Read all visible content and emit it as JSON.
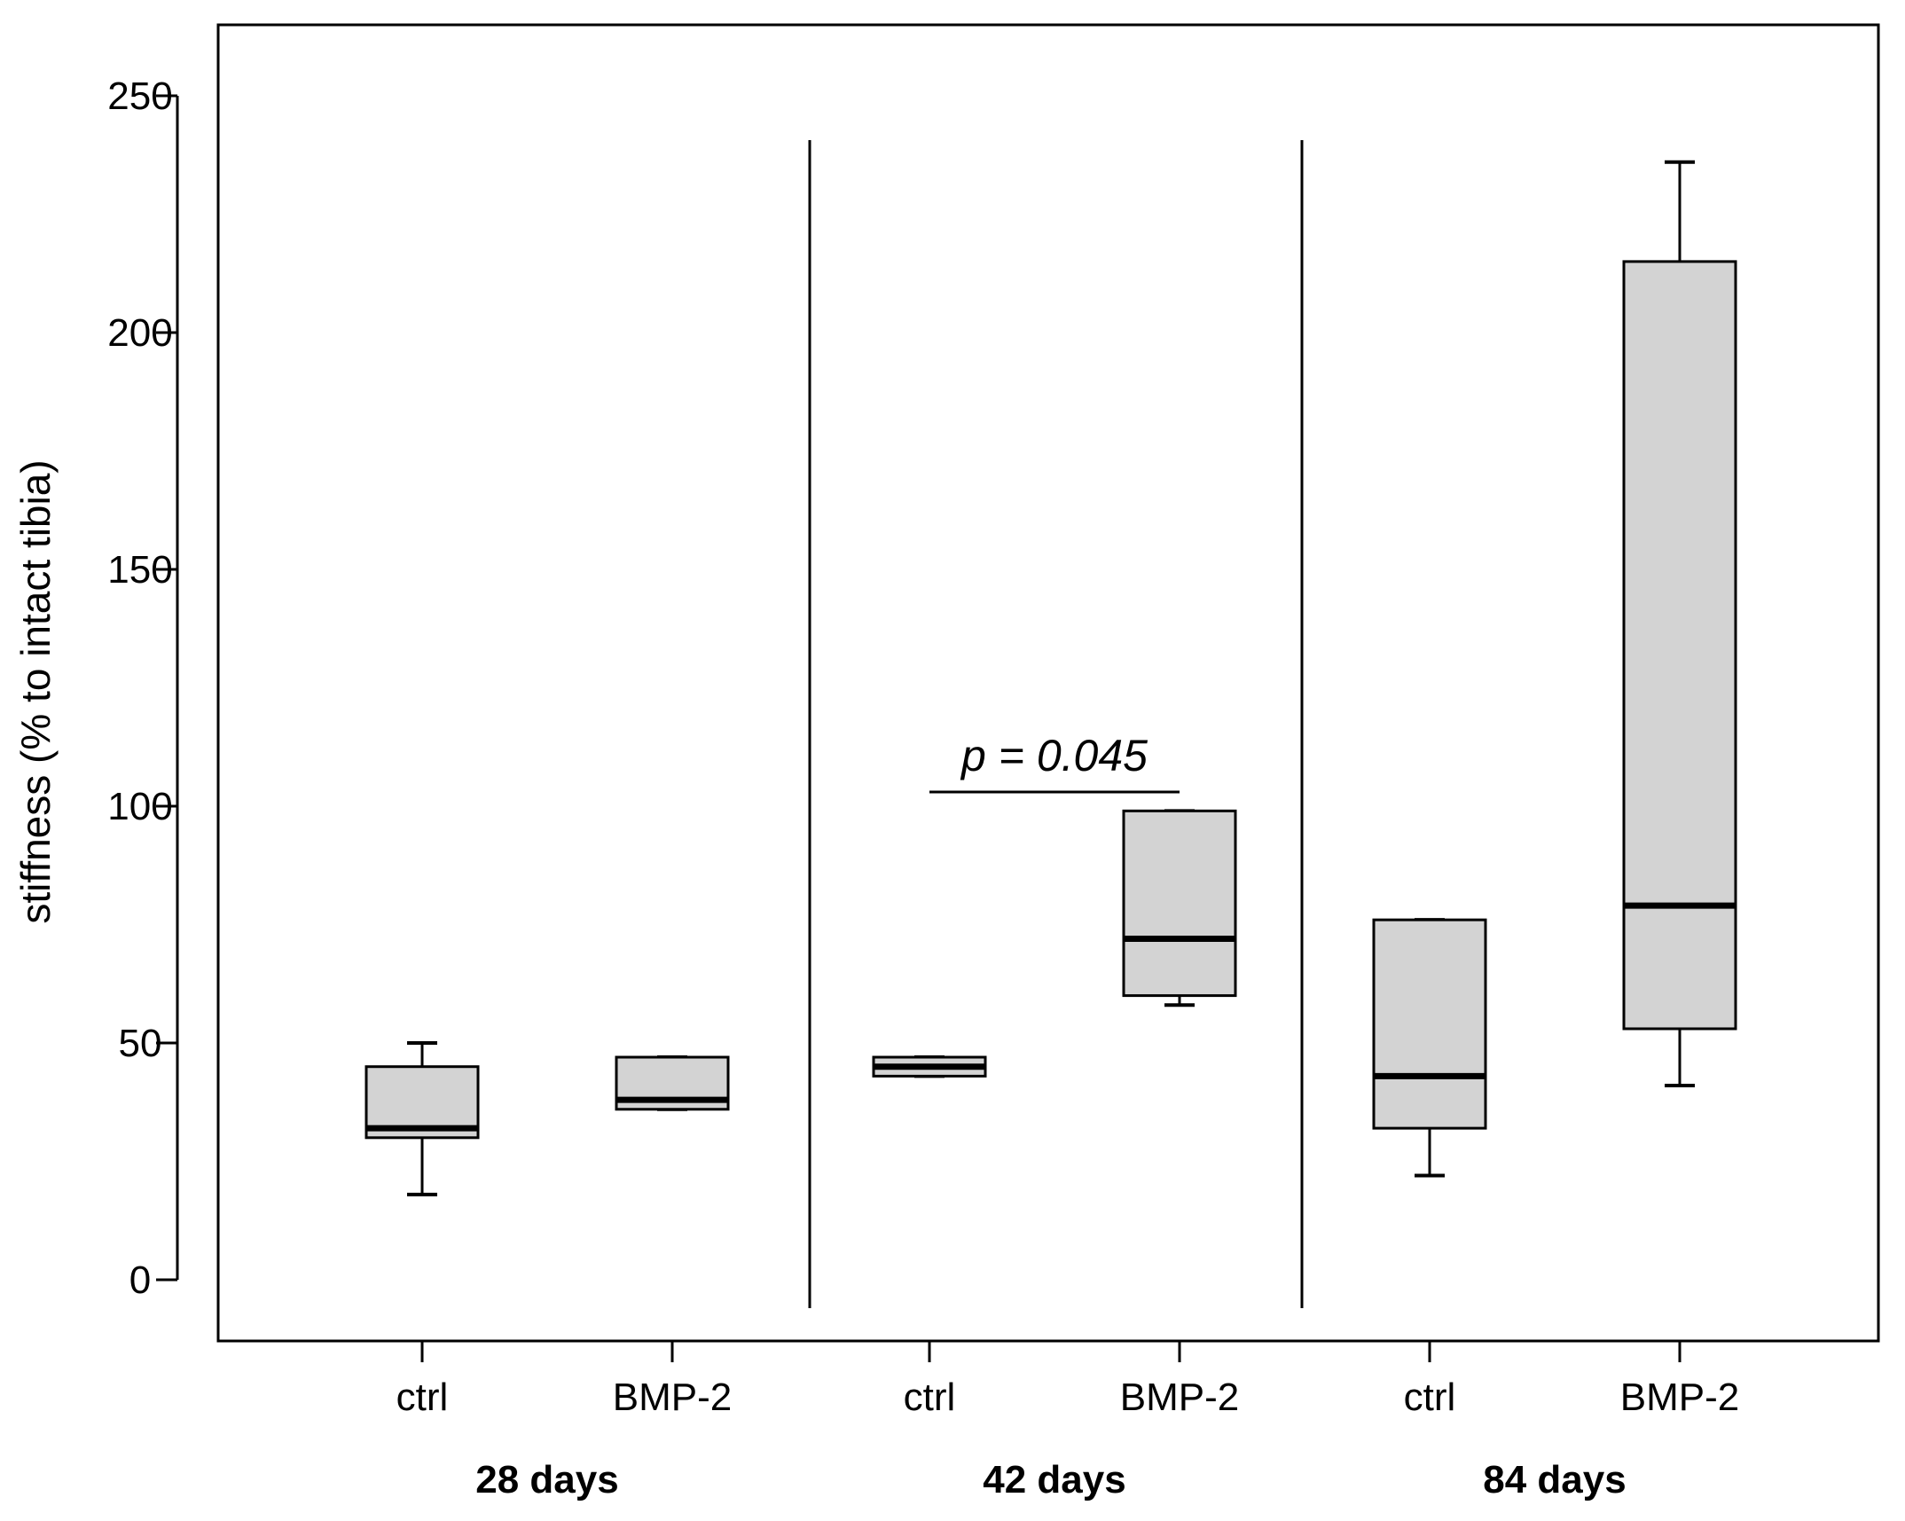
{
  "chart_data": {
    "type": "box",
    "ylabel": "stiffness (% to intact tibia)",
    "xlabel": "",
    "ylim": [
      -14,
      263
    ],
    "yticks": [
      0,
      50,
      100,
      150,
      200,
      250
    ],
    "ytick_labels": [
      "0",
      "50",
      "100",
      "150",
      "200",
      "250"
    ],
    "grid": false,
    "legend": "none",
    "colors": {
      "box_fill": "#d3d3d3",
      "line": "#000000"
    },
    "groups": [
      {
        "label": "28 days",
        "boxes": [
          {
            "category": "ctrl",
            "whisker_low": 18,
            "q1": 30,
            "median": 32,
            "q3": 45,
            "whisker_high": 50
          },
          {
            "category": "BMP-2",
            "whisker_low": 36,
            "q1": 36,
            "median": 38,
            "q3": 47,
            "whisker_high": 47
          }
        ]
      },
      {
        "label": "42 days",
        "boxes": [
          {
            "category": "ctrl",
            "whisker_low": 43,
            "q1": 43,
            "median": 45,
            "q3": 47,
            "whisker_high": 47
          },
          {
            "category": "BMP-2",
            "whisker_low": 58,
            "q1": 60,
            "median": 72,
            "q3": 99,
            "whisker_high": 99
          }
        ]
      },
      {
        "label": "84 days",
        "boxes": [
          {
            "category": "ctrl",
            "whisker_low": 22,
            "q1": 32,
            "median": 43,
            "q3": 76,
            "whisker_high": 76
          },
          {
            "category": "BMP-2",
            "whisker_low": 41,
            "q1": 53,
            "median": 79,
            "q3": 215,
            "whisker_high": 236
          }
        ]
      }
    ],
    "annotation": {
      "text": "p = 0.045",
      "group": "42 days",
      "y": 103
    }
  }
}
